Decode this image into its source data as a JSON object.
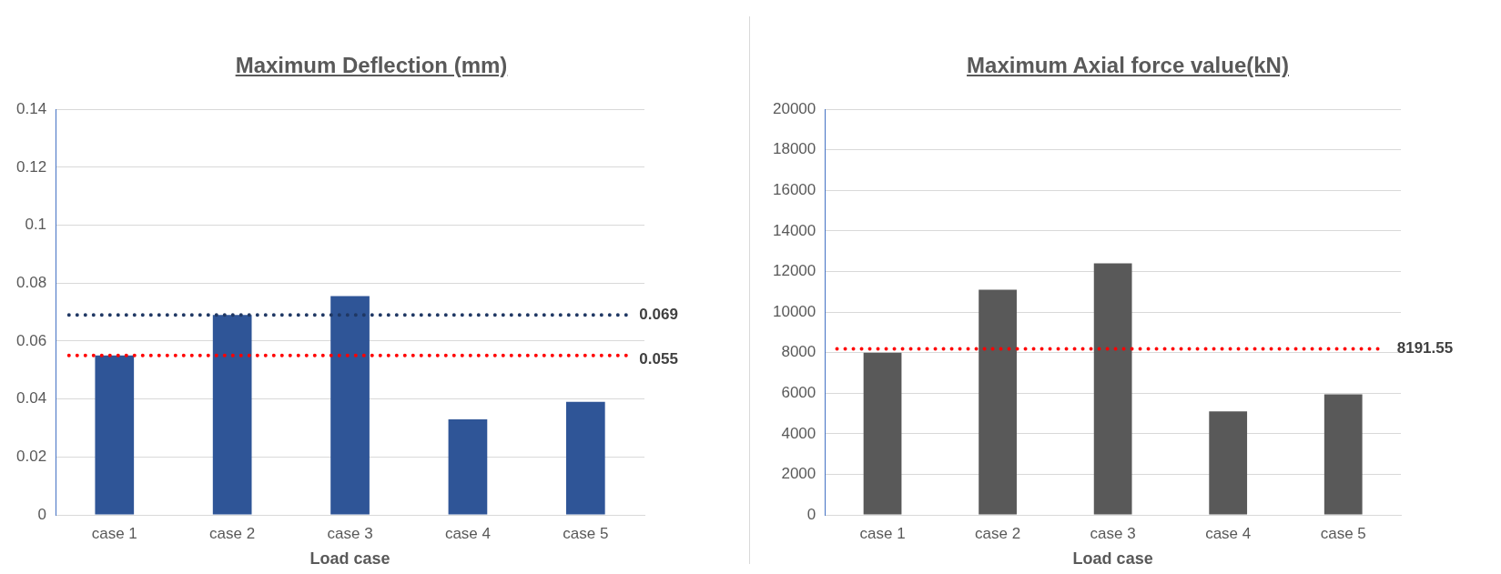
{
  "chart_data": [
    {
      "type": "bar",
      "title": "Maximum Deflection (mm)",
      "xlabel": "Load case",
      "categories": [
        "case 1",
        "case 2",
        "case 3",
        "case 4",
        "case 5"
      ],
      "values": [
        0.055,
        0.069,
        0.0755,
        0.033,
        0.039
      ],
      "color": "#2f5597",
      "ylim": [
        0,
        0.14
      ],
      "yticks": [
        0,
        0.02,
        0.04,
        0.06,
        0.08,
        0.1,
        0.12,
        0.14
      ],
      "grid": "y",
      "legend": false,
      "ref_lines": [
        {
          "axis": "y",
          "value": 0.069,
          "label": "0.069",
          "color": "#203864",
          "line_style": "dotted"
        },
        {
          "axis": "y",
          "value": 0.055,
          "label": "0.055",
          "color": "#ff0000",
          "line_style": "dotted"
        }
      ]
    },
    {
      "type": "bar",
      "title": "Maximum Axial force value(kN)",
      "xlabel": "Load case",
      "categories": [
        "case 1",
        "case 2",
        "case 3",
        "case 4",
        "case 5"
      ],
      "values": [
        8000,
        11100,
        12400,
        5100,
        5950
      ],
      "color": "#595959",
      "ylim": [
        0,
        20000
      ],
      "yticks": [
        0,
        2000,
        4000,
        6000,
        8000,
        10000,
        12000,
        14000,
        16000,
        18000,
        20000
      ],
      "grid": "y",
      "legend": false,
      "ref_lines": [
        {
          "axis": "y",
          "value": 8191.55,
          "label": "8191.55",
          "color": "#ff0000",
          "line_style": "dotted"
        }
      ]
    }
  ]
}
